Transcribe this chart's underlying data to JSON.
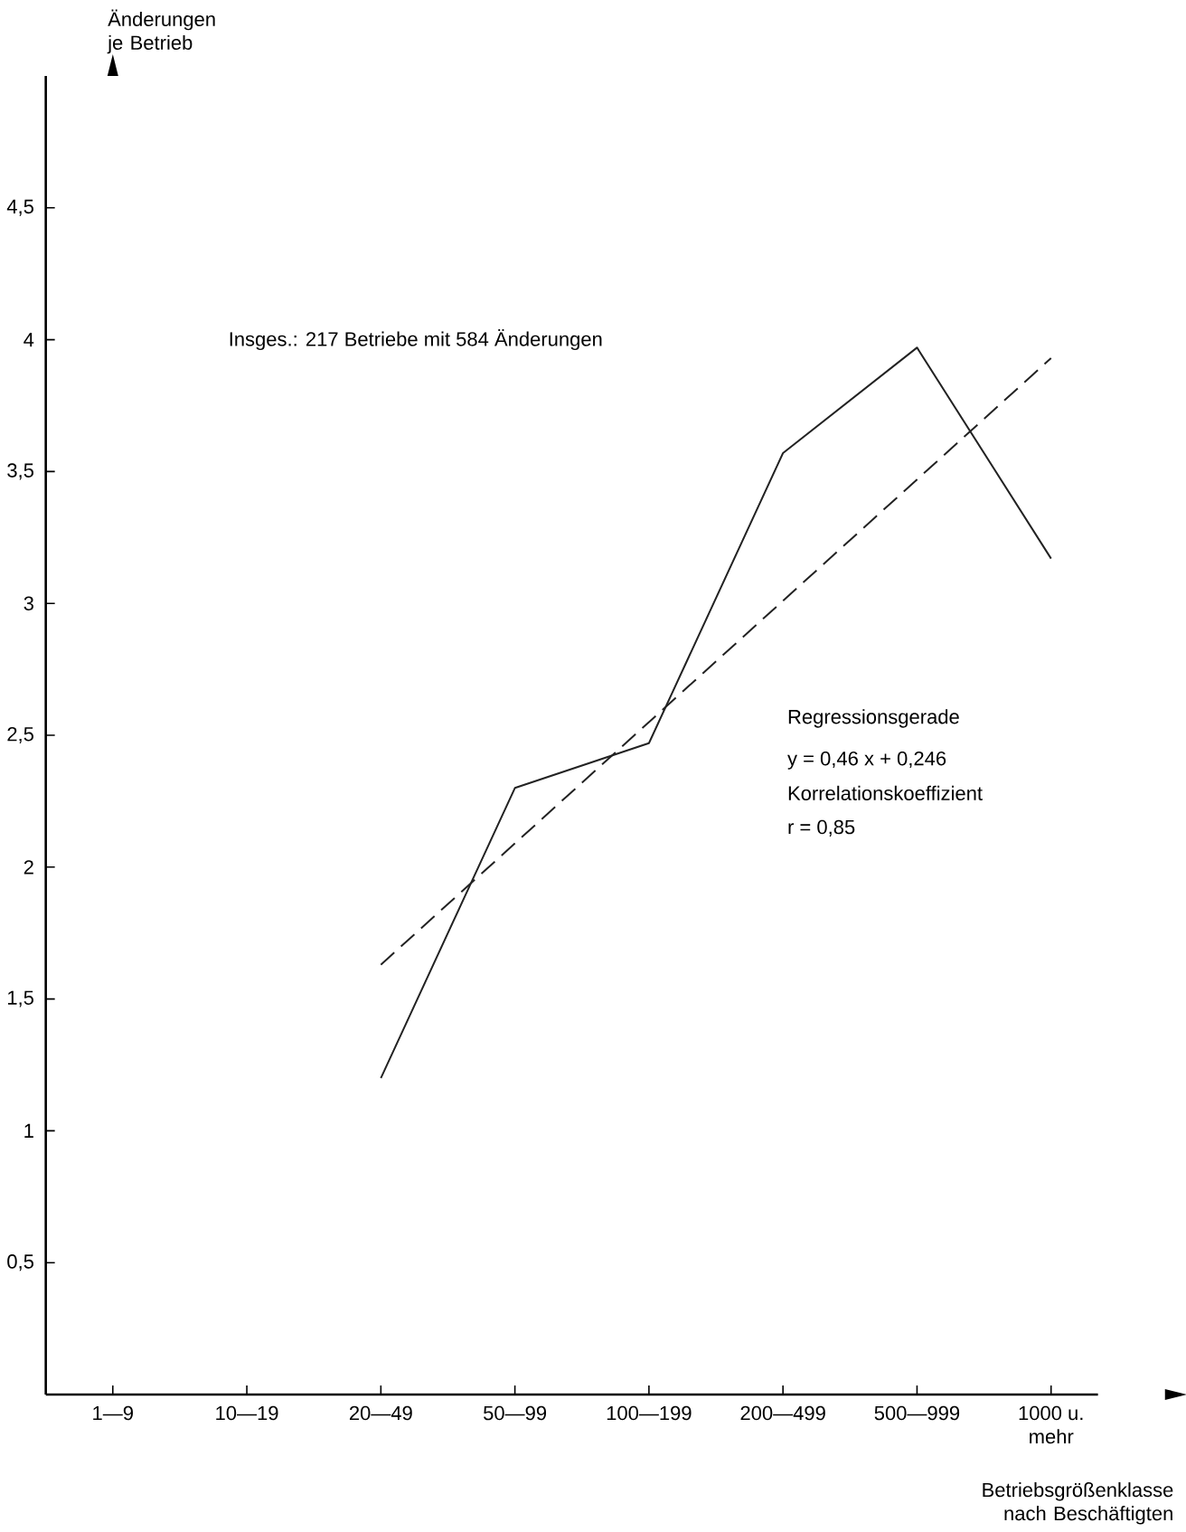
{
  "chart_data": {
    "type": "line",
    "categories": [
      "1—9",
      "10—19",
      "20—49",
      "50—99",
      "100—199",
      "200—499",
      "500—999",
      "1000 u. mehr"
    ],
    "series": [
      {
        "color": "#222222",
        "line_style": "solid",
        "values": [
          null,
          null,
          1.2,
          2.3,
          2.47,
          3.57,
          3.97,
          3.17
        ]
      },
      {
        "color": "#222222",
        "line_style": "dashed",
        "values": [
          null,
          null,
          1.63,
          2.09,
          2.55,
          3.01,
          3.47,
          3.93
        ]
      }
    ],
    "ylabel": "Änderungen je Betrieb",
    "xlabel": "Betriebsgrößenklasse nach Beschäftigten",
    "ylim": [
      0,
      5
    ],
    "yticks": [
      {
        "value": 0.5,
        "label": "0,5"
      },
      1,
      {
        "value": 1.5,
        "label": "1,5"
      },
      2,
      {
        "value": 2.5,
        "label": "2,5"
      },
      3,
      {
        "value": 3.5,
        "label": "3,5"
      },
      4,
      {
        "value": 4.5,
        "label": "4,5"
      }
    ],
    "annotations": [
      "Insges.: 217 Betriebe mit 584 Änderungen",
      "Regressionsgerade",
      "y = 0,46 x + 0,246",
      "Korrelationskoeffizient",
      "r = 0,85"
    ],
    "grid": false
  }
}
